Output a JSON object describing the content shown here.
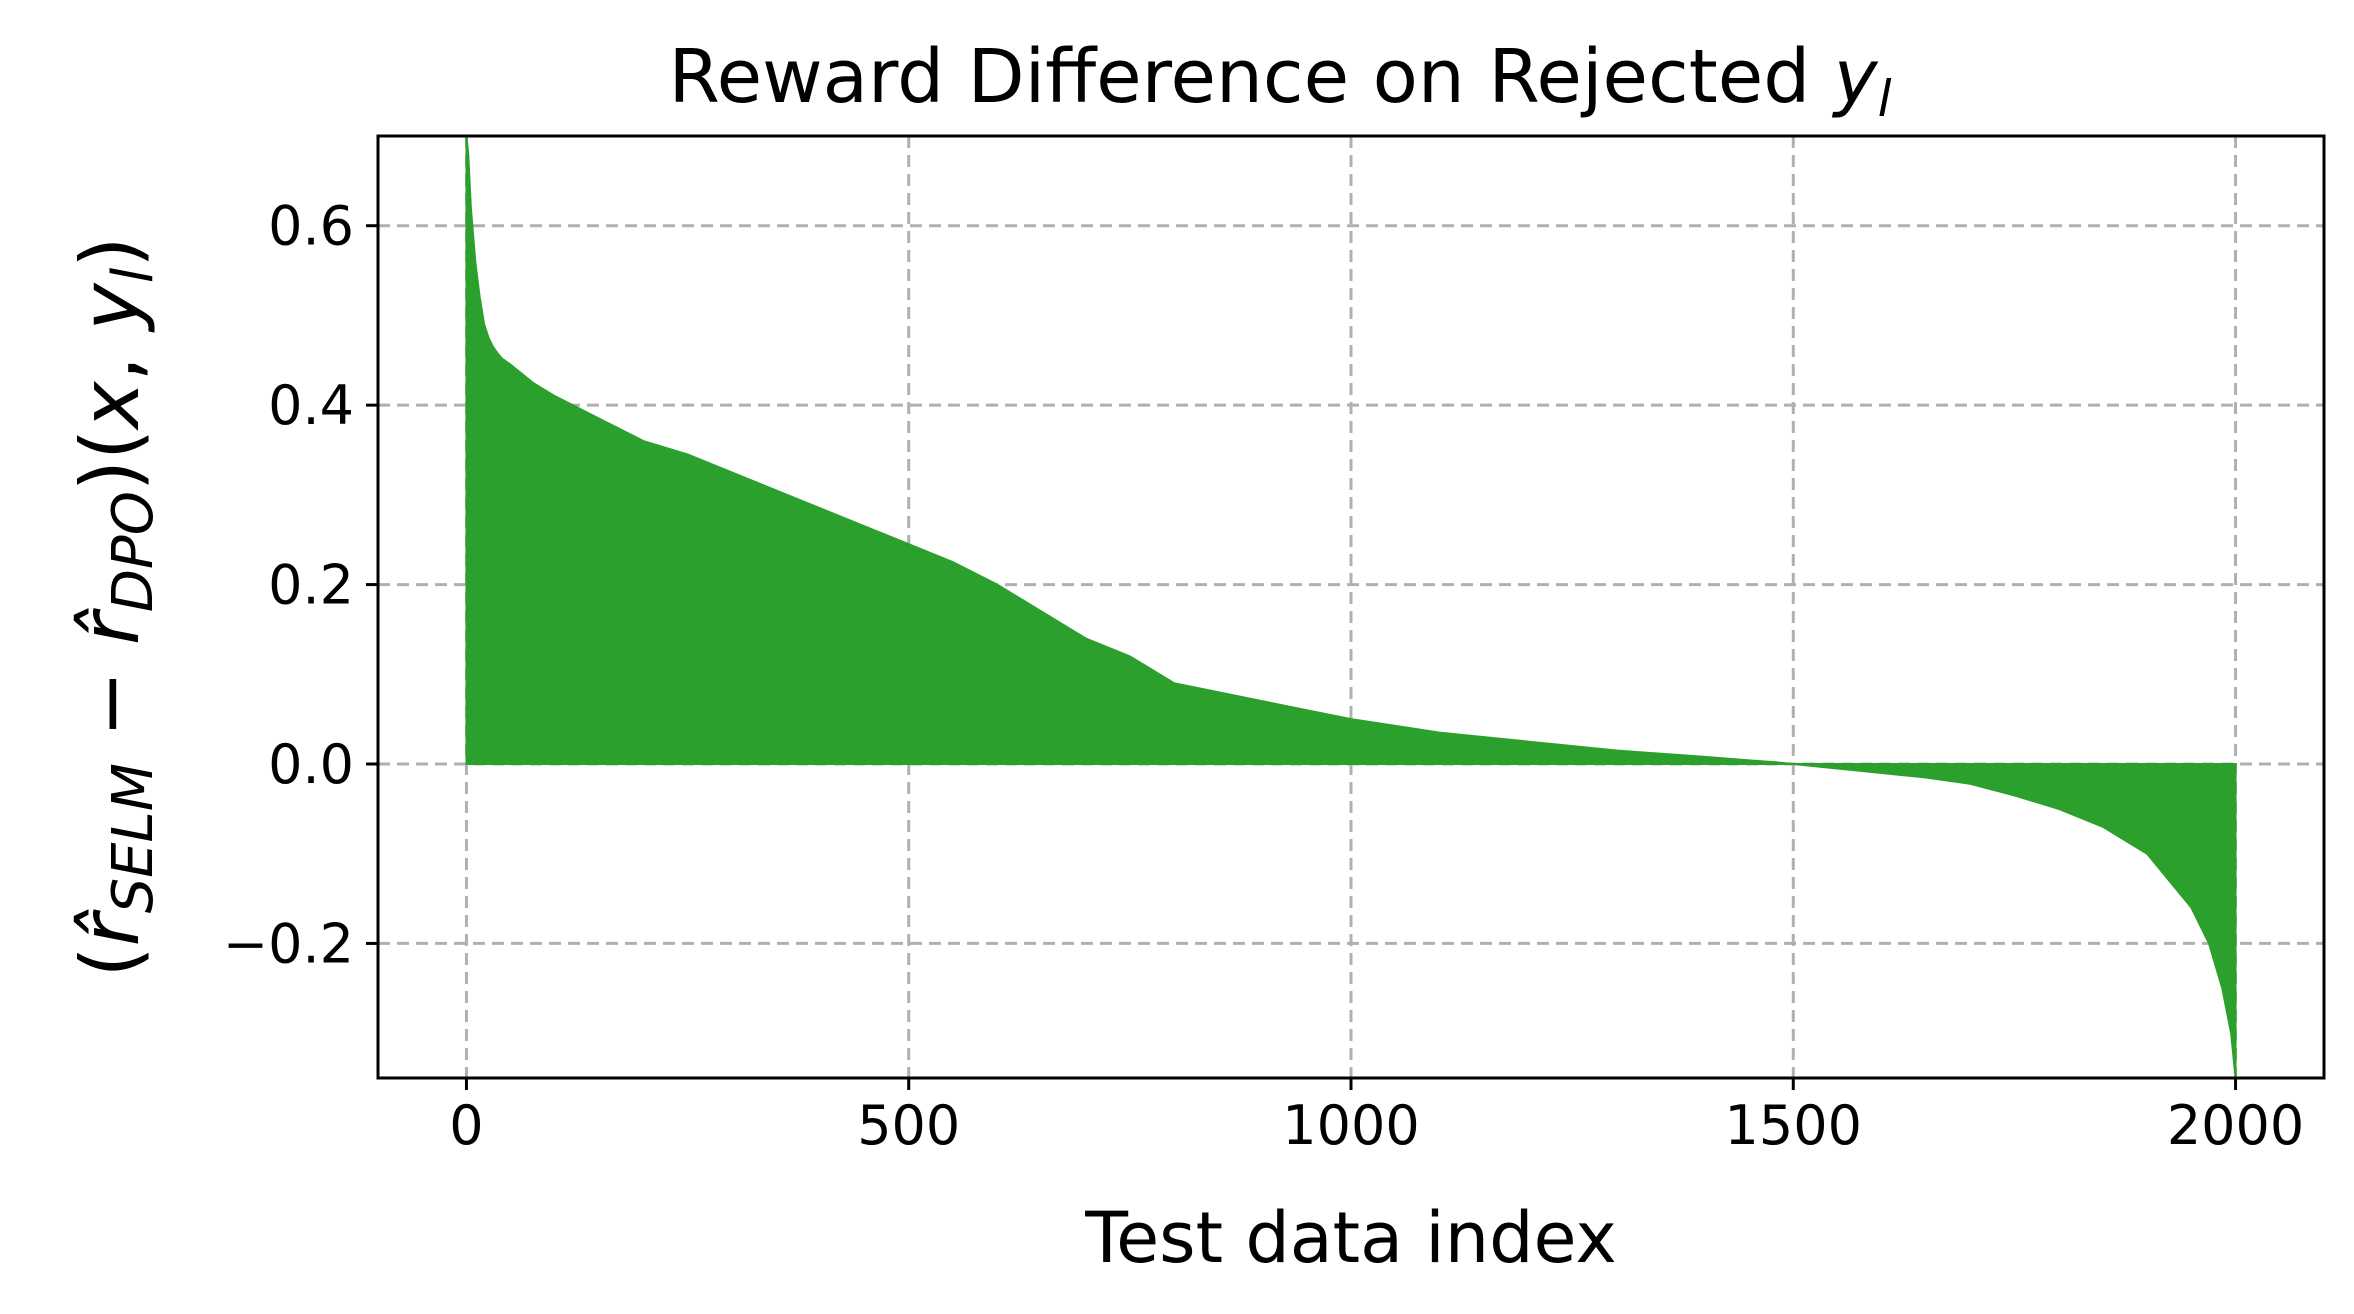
{
  "chart_data": {
    "type": "area",
    "title": "Reward Difference on Rejected y_l",
    "title_parts": {
      "main": "Reward Difference on Rejected ",
      "var": "y",
      "sub": "l"
    },
    "xlabel": "Test data index",
    "ylabel_parts": {
      "open": "(",
      "r1": "r̂",
      "sub1": "SELM",
      "minus": " − ",
      "r2": "r̂",
      "sub2": "DPO",
      "close": ")(",
      "x": "x",
      "comma": ", ",
      "y": "y",
      "sub3": "l",
      "end": ")"
    },
    "xlim": [
      -100,
      2100
    ],
    "ylim": [
      -0.35,
      0.7
    ],
    "xticks": [
      0,
      500,
      1000,
      1500,
      2000
    ],
    "xtick_labels": [
      "0",
      "500",
      "1000",
      "1500",
      "2000"
    ],
    "yticks": [
      -0.2,
      0.0,
      0.2,
      0.4,
      0.6
    ],
    "ytick_labels": [
      "−0.2",
      "0.0",
      "0.2",
      "0.4",
      "0.6"
    ],
    "grid": true,
    "color": "#2ca02c",
    "series": [
      {
        "x": [
          0,
          2,
          5,
          10,
          15,
          20,
          25,
          30,
          35,
          40,
          50,
          75,
          100,
          150,
          200,
          250,
          300,
          350,
          400,
          450,
          500,
          550,
          600,
          650,
          700,
          750,
          800,
          850,
          900,
          950,
          1000,
          1100,
          1200,
          1300,
          1400,
          1450,
          1480,
          1500,
          1550,
          1600,
          1650,
          1700,
          1750,
          1800,
          1850,
          1900,
          1925,
          1950,
          1970,
          1985,
          1995,
          2000
        ],
        "y": [
          0.7,
          0.68,
          0.62,
          0.56,
          0.52,
          0.49,
          0.475,
          0.465,
          0.458,
          0.452,
          0.445,
          0.425,
          0.41,
          0.385,
          0.36,
          0.345,
          0.325,
          0.305,
          0.285,
          0.265,
          0.245,
          0.225,
          0.2,
          0.17,
          0.14,
          0.12,
          0.09,
          0.08,
          0.07,
          0.06,
          0.05,
          0.035,
          0.025,
          0.015,
          0.008,
          0.004,
          0.002,
          0.0,
          -0.005,
          -0.01,
          -0.015,
          -0.022,
          -0.035,
          -0.05,
          -0.07,
          -0.1,
          -0.13,
          -0.16,
          -0.2,
          -0.25,
          -0.3,
          -0.35
        ]
      }
    ]
  }
}
